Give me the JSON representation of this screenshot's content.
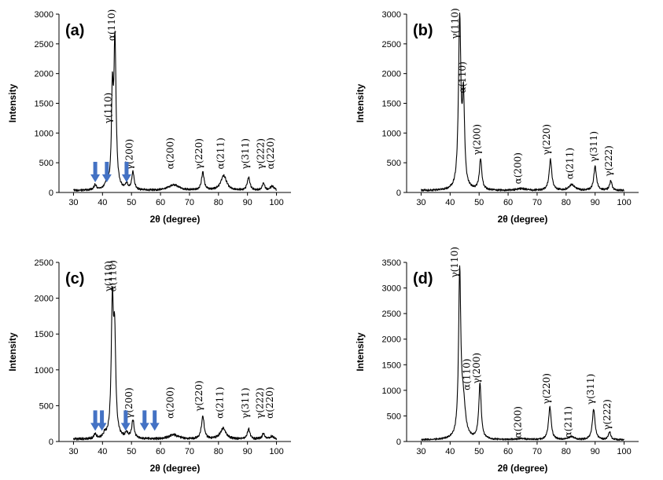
{
  "chart_data": [
    {
      "type": "line",
      "panel": "(a)",
      "xlabel": "2θ (degree)",
      "ylabel": "Intensity",
      "xlim": [
        25,
        105
      ],
      "ylim": [
        0,
        3000
      ],
      "xticks": [
        30,
        40,
        50,
        60,
        70,
        80,
        90,
        100
      ],
      "yticks": [
        0,
        500,
        1000,
        1500,
        2000,
        2500,
        3000
      ],
      "baseline": 40,
      "peaks": [
        {
          "x": 37.5,
          "y": 90,
          "w": 0.5
        },
        {
          "x": 41.5,
          "y": 120,
          "w": 0.6
        },
        {
          "x": 43.4,
          "y": 1500,
          "w": 0.35
        },
        {
          "x": 44.3,
          "y": 2480,
          "w": 0.45
        },
        {
          "x": 48.3,
          "y": 90,
          "w": 0.5
        },
        {
          "x": 50.5,
          "y": 300,
          "w": 0.5
        },
        {
          "x": 64.6,
          "y": 95,
          "w": 2.2
        },
        {
          "x": 74.6,
          "y": 300,
          "w": 0.55
        },
        {
          "x": 81.8,
          "y": 250,
          "w": 1.2
        },
        {
          "x": 90.4,
          "y": 220,
          "w": 0.55
        },
        {
          "x": 95.5,
          "y": 120,
          "w": 0.5
        },
        {
          "x": 98.5,
          "y": 70,
          "w": 0.8
        }
      ],
      "annotations": [
        {
          "text": "γ(110)",
          "x": 43.0,
          "y": 1160
        },
        {
          "text": "α(110)",
          "x": 44.3,
          "y": 2550
        },
        {
          "text": "γ(200)",
          "x": 50.4,
          "y": 380
        },
        {
          "text": "α(200)",
          "x": 64.4,
          "y": 390
        },
        {
          "text": "γ(220)",
          "x": 74.4,
          "y": 390
        },
        {
          "text": "α(211)",
          "x": 81.8,
          "y": 390
        },
        {
          "text": "γ(311)",
          "x": 90.4,
          "y": 390
        },
        {
          "text": "γ(222)",
          "x": 95.6,
          "y": 390
        },
        {
          "text": "α(220)",
          "x": 99.0,
          "y": 390
        }
      ],
      "arrows": [
        37.5,
        41.5,
        48.3
      ]
    },
    {
      "type": "line",
      "panel": "(b)",
      "xlabel": "2θ (degree)",
      "ylabel": "Intensity",
      "xlim": [
        25,
        105
      ],
      "ylim": [
        0,
        3000
      ],
      "xticks": [
        30,
        40,
        50,
        60,
        70,
        80,
        90,
        100
      ],
      "yticks": [
        0,
        500,
        1000,
        1500,
        2000,
        2500,
        3000
      ],
      "baseline": 40,
      "peaks": [
        {
          "x": 43.3,
          "y": 2830,
          "w": 0.5
        },
        {
          "x": 44.6,
          "y": 1450,
          "w": 0.45
        },
        {
          "x": 50.5,
          "y": 520,
          "w": 0.5
        },
        {
          "x": 64.5,
          "y": 30,
          "w": 2.0
        },
        {
          "x": 74.6,
          "y": 520,
          "w": 0.55
        },
        {
          "x": 82.0,
          "y": 100,
          "w": 1.2
        },
        {
          "x": 90.0,
          "y": 400,
          "w": 0.55
        },
        {
          "x": 95.4,
          "y": 160,
          "w": 0.5
        }
      ],
      "annotations": [
        {
          "text": "γ(110)",
          "x": 42.8,
          "y": 2580
        },
        {
          "text": "α(110)",
          "x": 45.4,
          "y": 1670
        },
        {
          "text": "γ(200)",
          "x": 50.4,
          "y": 630
        },
        {
          "text": "α(200)",
          "x": 64.4,
          "y": 140
        },
        {
          "text": "γ(220)",
          "x": 74.4,
          "y": 630
        },
        {
          "text": "α(211)",
          "x": 82.3,
          "y": 220
        },
        {
          "text": "γ(311)",
          "x": 90.6,
          "y": 510
        },
        {
          "text": "γ(222)",
          "x": 95.8,
          "y": 270
        }
      ],
      "arrows": []
    },
    {
      "type": "line",
      "panel": "(c)",
      "xlabel": "2θ (degree)",
      "ylabel": "Intensity",
      "xlim": [
        25,
        105
      ],
      "ylim": [
        0,
        2500
      ],
      "xticks": [
        30,
        40,
        50,
        60,
        70,
        80,
        90,
        100
      ],
      "yticks": [
        0,
        500,
        1000,
        1500,
        2000,
        2500
      ],
      "baseline": 40,
      "peaks": [
        {
          "x": 37.5,
          "y": 60,
          "w": 0.5
        },
        {
          "x": 40.8,
          "y": 60,
          "w": 0.5
        },
        {
          "x": 43.4,
          "y": 1800,
          "w": 0.45
        },
        {
          "x": 44.2,
          "y": 1300,
          "w": 0.45
        },
        {
          "x": 48.3,
          "y": 70,
          "w": 0.6
        },
        {
          "x": 50.5,
          "y": 260,
          "w": 0.5
        },
        {
          "x": 64.5,
          "y": 60,
          "w": 2.0
        },
        {
          "x": 74.6,
          "y": 320,
          "w": 0.55
        },
        {
          "x": 81.6,
          "y": 150,
          "w": 1.2
        },
        {
          "x": 90.4,
          "y": 140,
          "w": 0.55
        },
        {
          "x": 95.5,
          "y": 80,
          "w": 0.5
        },
        {
          "x": 98.5,
          "y": 40,
          "w": 0.8
        }
      ],
      "annotations": [
        {
          "text": "γ(110)",
          "x": 43.2,
          "y": 2090
        },
        {
          "text": "α(110)",
          "x": 44.6,
          "y": 2090
        },
        {
          "text": "γ(200)",
          "x": 50.2,
          "y": 320
        },
        {
          "text": "α(200)",
          "x": 64.4,
          "y": 320
        },
        {
          "text": "γ(220)",
          "x": 74.4,
          "y": 420
        },
        {
          "text": "α(211)",
          "x": 81.6,
          "y": 320
        },
        {
          "text": "γ(311)",
          "x": 90.4,
          "y": 320
        },
        {
          "text": "γ(222)",
          "x": 95.4,
          "y": 320
        },
        {
          "text": "α(220)",
          "x": 98.8,
          "y": 320
        }
      ],
      "arrows": [
        37.5,
        39.8,
        48.0,
        54.5,
        58.0
      ]
    },
    {
      "type": "line",
      "panel": "(d)",
      "xlabel": "2θ (degree)",
      "ylabel": "Intensity",
      "xlim": [
        25,
        105
      ],
      "ylim": [
        0,
        3500
      ],
      "xticks": [
        30,
        40,
        50,
        60,
        70,
        80,
        90,
        100
      ],
      "yticks": [
        0,
        500,
        1000,
        1500,
        2000,
        2500,
        3000,
        3500
      ],
      "baseline": 40,
      "peaks": [
        {
          "x": 43.3,
          "y": 3140,
          "w": 0.45
        },
        {
          "x": 44.5,
          "y": 700,
          "w": 0.9
        },
        {
          "x": 50.3,
          "y": 1080,
          "w": 0.5
        },
        {
          "x": 64.5,
          "y": 20,
          "w": 2.0
        },
        {
          "x": 74.4,
          "y": 640,
          "w": 0.55
        },
        {
          "x": 81.8,
          "y": 60,
          "w": 1.2
        },
        {
          "x": 89.5,
          "y": 600,
          "w": 0.55
        },
        {
          "x": 95.0,
          "y": 150,
          "w": 0.5
        }
      ],
      "annotations": [
        {
          "text": "γ(110)",
          "x": 42.6,
          "y": 3200
        },
        {
          "text": "α(110)",
          "x": 46.8,
          "y": 1000
        },
        {
          "text": "γ(200)",
          "x": 50.2,
          "y": 1130
        },
        {
          "text": "α(200)",
          "x": 64.4,
          "y": 70
        },
        {
          "text": "γ(220)",
          "x": 74.4,
          "y": 730
        },
        {
          "text": "α(211)",
          "x": 81.8,
          "y": 70
        },
        {
          "text": "γ(311)",
          "x": 89.6,
          "y": 720
        },
        {
          "text": "γ(222)",
          "x": 95.2,
          "y": 220
        }
      ],
      "arrows": []
    }
  ]
}
